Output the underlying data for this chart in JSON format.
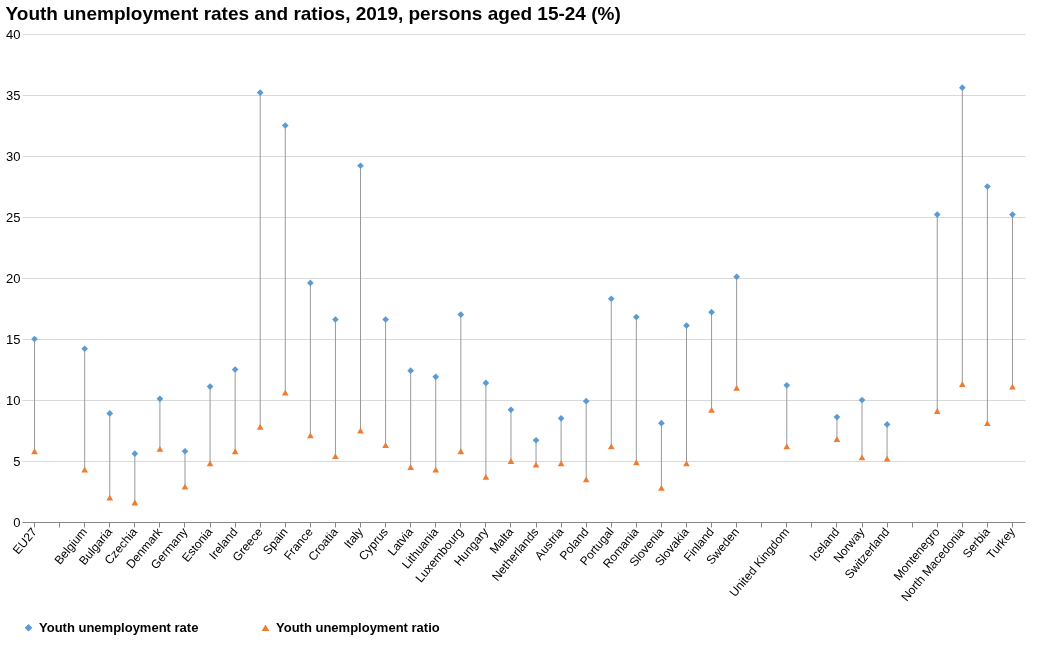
{
  "chart_data": {
    "type": "scatter",
    "title": "Youth unemployment rates and ratios, 2019, persons aged 15-24 (%)",
    "categories": [
      "EU27",
      null,
      "Belgium",
      "Bulgaria",
      "Czechia",
      "Denmark",
      "Germany",
      "Estonia",
      "Ireland",
      "Greece",
      "Spain",
      "France",
      "Croatia",
      "Italy",
      "Cyprus",
      "Latvia",
      "Lithuania",
      "Luxembourg",
      "Hungary",
      "Malta",
      "Netherlands",
      "Austria",
      "Poland",
      "Portugal",
      "Romania",
      "Slovenia",
      "Slovakia",
      "Finland",
      "Sweden",
      null,
      "United Kingdom",
      null,
      "Iceland",
      "Norway",
      "Switzerland",
      null,
      "Montenegro",
      "North Macedonia",
      "Serbia",
      "Turkey"
    ],
    "series": [
      {
        "name": "Youth unemployment rate",
        "color": "#5b9bd5",
        "marker": "diamond",
        "values": [
          15.0,
          null,
          14.2,
          8.9,
          5.6,
          10.1,
          5.8,
          11.1,
          12.5,
          35.2,
          32.5,
          19.6,
          16.6,
          29.2,
          16.6,
          12.4,
          11.9,
          17.0,
          11.4,
          9.2,
          6.7,
          8.5,
          9.9,
          18.3,
          16.8,
          8.1,
          16.1,
          17.2,
          20.1,
          null,
          11.2,
          null,
          8.6,
          10.0,
          8.0,
          null,
          25.2,
          35.6,
          27.5,
          25.2
        ]
      },
      {
        "name": "Youth unemployment ratio",
        "color": "#ed7d31",
        "marker": "triangle",
        "values": [
          5.8,
          null,
          4.3,
          2.0,
          1.6,
          6.0,
          2.9,
          4.8,
          5.8,
          7.8,
          10.6,
          7.1,
          5.4,
          7.5,
          6.3,
          4.5,
          4.3,
          5.8,
          3.7,
          5.0,
          4.7,
          4.8,
          3.5,
          6.2,
          4.9,
          2.8,
          4.8,
          9.2,
          11.0,
          null,
          6.2,
          null,
          6.8,
          5.3,
          5.2,
          null,
          9.1,
          11.3,
          8.1,
          11.1
        ]
      }
    ],
    "ylim": [
      0,
      40
    ],
    "yticks": [
      0,
      5,
      10,
      15,
      20,
      25,
      30,
      35,
      40
    ],
    "grid": "y",
    "legend": "bottom"
  }
}
